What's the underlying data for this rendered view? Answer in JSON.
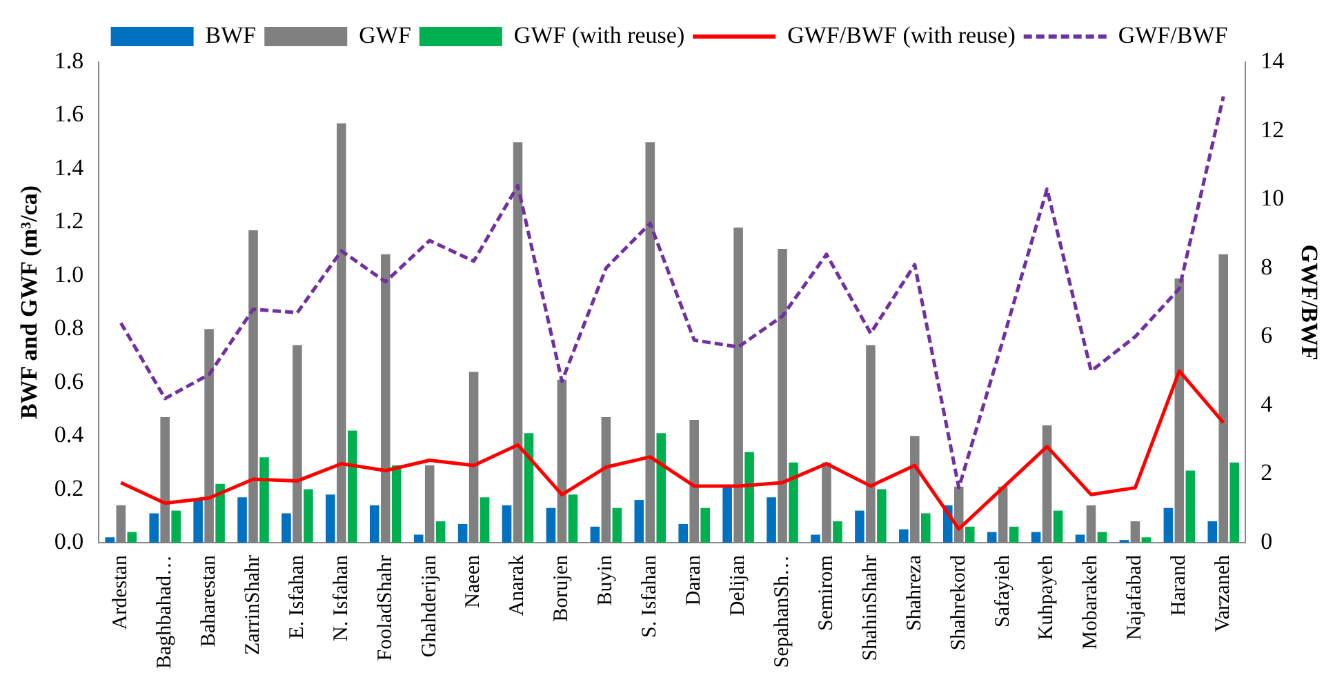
{
  "chart_data": {
    "type": "bar",
    "ylabel": "BWF and GWF (m³/ca)",
    "y2label": "GWF/BWF",
    "categories": [
      "Ardestan",
      "Baghbahad…",
      "Baharestan",
      "ZarrinShahr",
      "E. Isfahan",
      "N. Isfahan",
      "FooladShahr",
      "Ghahderijan",
      "Naeen",
      "Anarak",
      "Borujen",
      "Buyin",
      "S. Isfahan",
      "Daran",
      "Delijan",
      "SepahanSh…",
      "Semirom",
      "ShahinShahr",
      "Shahreza",
      "Shahrekord",
      "Safayieh",
      "Kuhpayeh",
      "Mobarakeh",
      "Najafabad",
      "Harand",
      "Varzaneh"
    ],
    "series": [
      {
        "name": "BWF",
        "color": "#0070c0",
        "values": [
          0.02,
          0.11,
          0.16,
          0.17,
          0.11,
          0.18,
          0.14,
          0.03,
          0.07,
          0.14,
          0.13,
          0.06,
          0.16,
          0.07,
          0.21,
          0.17,
          0.03,
          0.12,
          0.05,
          0.14,
          0.04,
          0.04,
          0.03,
          0.01,
          0.13,
          0.08
        ]
      },
      {
        "name": "GWF",
        "color": "#808080",
        "values": [
          0.14,
          0.47,
          0.8,
          1.17,
          0.74,
          1.57,
          1.08,
          0.29,
          0.64,
          1.5,
          0.61,
          0.47,
          1.5,
          0.46,
          1.18,
          1.1,
          0.3,
          0.74,
          0.4,
          0.21,
          0.21,
          0.44,
          0.14,
          0.08,
          0.99,
          1.08
        ]
      },
      {
        "name": "GWF (with reuse)",
        "color": "#00b050",
        "values": [
          0.04,
          0.12,
          0.22,
          0.32,
          0.2,
          0.42,
          0.29,
          0.08,
          0.17,
          0.41,
          0.18,
          0.13,
          0.41,
          0.13,
          0.34,
          0.3,
          0.08,
          0.2,
          0.11,
          0.06,
          0.06,
          0.12,
          0.04,
          0.02,
          0.27,
          0.3
        ]
      },
      {
        "name": "GWF/BWF (with reuse)",
        "type": "line",
        "axis": "y2",
        "color": "#ff0000",
        "line_style": "solid",
        "values": [
          1.75,
          1.15,
          1.3,
          1.85,
          1.8,
          2.3,
          2.1,
          2.4,
          2.25,
          2.85,
          1.4,
          2.2,
          2.5,
          1.65,
          1.65,
          1.75,
          2.3,
          1.65,
          2.25,
          0.4,
          1.6,
          2.8,
          1.4,
          1.6,
          5.0,
          3.5
        ]
      },
      {
        "name": "GWF/BWF",
        "type": "line",
        "axis": "y2",
        "color": "#7030a0",
        "line_style": "dashed",
        "values": [
          6.4,
          4.2,
          4.9,
          6.8,
          6.7,
          8.5,
          7.6,
          8.8,
          8.2,
          10.4,
          4.7,
          8.0,
          9.3,
          5.9,
          5.7,
          6.6,
          8.4,
          6.1,
          8.1,
          1.6,
          5.9,
          10.3,
          5.0,
          6.0,
          7.4,
          13.0
        ]
      }
    ],
    "ylim": [
      0,
      1.8
    ],
    "yticks": [
      {
        "value": 0,
        "label": "0.0"
      },
      {
        "value": 0.2,
        "label": "0.2"
      },
      {
        "value": 0.4,
        "label": "0.4"
      },
      {
        "value": 0.6,
        "label": "0.6"
      },
      {
        "value": 0.8,
        "label": "0.8"
      },
      {
        "value": 1,
        "label": "1.0"
      },
      {
        "value": 1.2,
        "label": "1.2"
      },
      {
        "value": 1.4,
        "label": "1.4"
      },
      {
        "value": 1.6,
        "label": "1.6"
      },
      {
        "value": 1.8,
        "label": "1.8"
      }
    ],
    "y2lim": [
      0,
      14
    ],
    "y2ticks": [
      0,
      2,
      4,
      6,
      8,
      10,
      12,
      14
    ],
    "grid": false,
    "legend": "top",
    "marker": "none"
  }
}
